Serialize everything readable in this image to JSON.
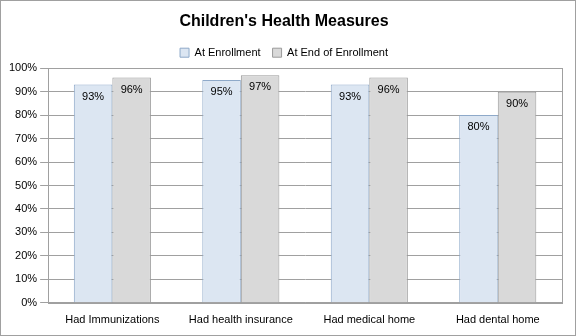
{
  "chart_data": {
    "type": "bar",
    "title": "Children's Health Measures",
    "categories": [
      "Had Immunizations",
      "Had health insurance",
      "Had medical home",
      "Had dental home"
    ],
    "series": [
      {
        "name": "At Enrollment",
        "color": "#dce6f2",
        "values": [
          93,
          95,
          93,
          80
        ],
        "value_labels": [
          "93%",
          "95%",
          "93%",
          "80%"
        ]
      },
      {
        "name": "At End of Enrollment",
        "color": "#d9d9d9",
        "values": [
          96,
          97,
          96,
          90
        ],
        "value_labels": [
          "96%",
          "97%",
          "96%",
          "90%"
        ]
      }
    ],
    "ylim": [
      0,
      100
    ],
    "yticks": [
      {
        "value": 0,
        "label": "0%"
      },
      {
        "value": 10,
        "label": "10%"
      },
      {
        "value": 20,
        "label": "20%"
      },
      {
        "value": 30,
        "label": "30%"
      },
      {
        "value": 40,
        "label": "40%"
      },
      {
        "value": 50,
        "label": "50%"
      },
      {
        "value": 60,
        "label": "60%"
      },
      {
        "value": 70,
        "label": "70%"
      },
      {
        "value": 80,
        "label": "80%"
      },
      {
        "value": 90,
        "label": "90%"
      },
      {
        "value": 100,
        "label": "100%"
      }
    ],
    "grid": true,
    "legend": "top",
    "data_labels": true
  }
}
